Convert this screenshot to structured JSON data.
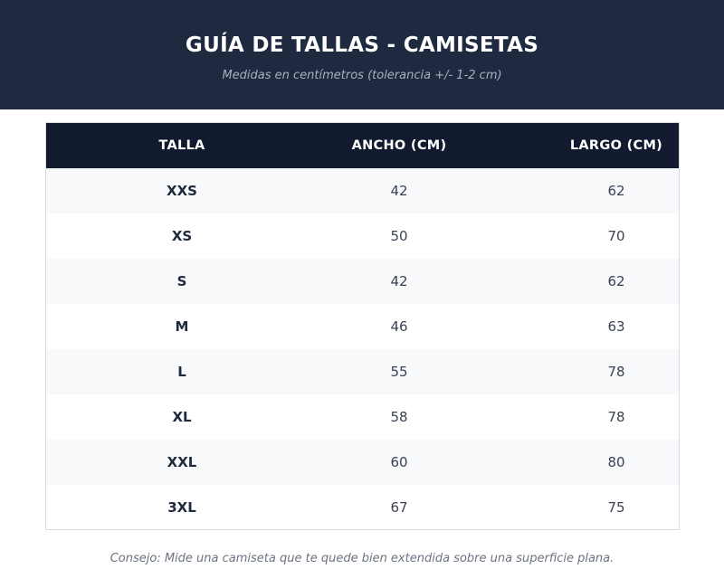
{
  "header": {
    "title": "GUÍA DE TALLAS - CAMISETAS",
    "subtitle": "Medidas en centímetros (tolerancia +/- 1-2 cm)"
  },
  "table": {
    "columns": [
      "TALLA",
      "ANCHO (CM)",
      "LARGO (CM)"
    ],
    "rows": [
      {
        "talla": "XXS",
        "ancho": "42",
        "largo": "62"
      },
      {
        "talla": "XS",
        "ancho": "50",
        "largo": "70"
      },
      {
        "talla": "S",
        "ancho": "42",
        "largo": "62"
      },
      {
        "talla": "M",
        "ancho": "46",
        "largo": "63"
      },
      {
        "talla": "L",
        "ancho": "55",
        "largo": "78"
      },
      {
        "talla": "XL",
        "ancho": "58",
        "largo": "78"
      },
      {
        "talla": "XXL",
        "ancho": "60",
        "largo": "80"
      },
      {
        "talla": "3XL",
        "ancho": "67",
        "largo": "75"
      }
    ]
  },
  "footer": {
    "tip": "Consejo: Mide una camiseta que te quede bien extendida sobre una superficie plana."
  },
  "colors": {
    "header_bg": "#1f2a40",
    "table_header_bg": "#111a2e",
    "row_alt_bg": "#f7f9fb"
  }
}
